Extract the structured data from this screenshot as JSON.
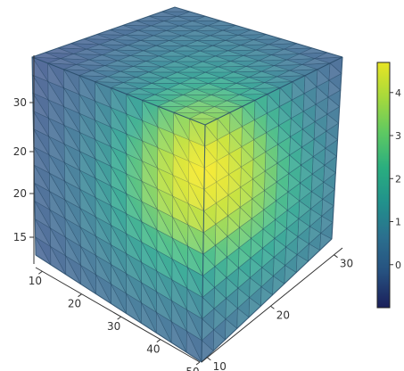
{
  "chart_data": {
    "type": "volume",
    "colormap": "viridis",
    "colorbar": {
      "range": [
        -1,
        4.7
      ],
      "ticks": [
        {
          "value": 0,
          "label": "0"
        },
        {
          "value": 1,
          "label": "1"
        },
        {
          "value": 2,
          "label": "2"
        },
        {
          "value": 3,
          "label": "3"
        },
        {
          "value": 4,
          "label": "4"
        }
      ]
    },
    "axes": {
      "x": {
        "ticks": [
          "10",
          "20",
          "30",
          "40",
          "50"
        ]
      },
      "y": {
        "ticks": [
          "10",
          "20",
          "30"
        ]
      },
      "z": {
        "ticks": [
          "15",
          "20",
          "20",
          "30"
        ]
      }
    },
    "field": {
      "description_values": {
        "peak": 4.5,
        "edge_min": 0.4
      }
    }
  },
  "colors": {
    "viridis": [
      "#440154",
      "#482878",
      "#3e4a89",
      "#31688e",
      "#26828e",
      "#1f9e89",
      "#35b779",
      "#6ece58",
      "#b5de2b",
      "#fde725"
    ],
    "colorbar": [
      "#1a1f5a",
      "#26507f",
      "#2b6f8e",
      "#21918c",
      "#2aae7f",
      "#5ec962",
      "#a6d93c",
      "#e8e524"
    ]
  }
}
